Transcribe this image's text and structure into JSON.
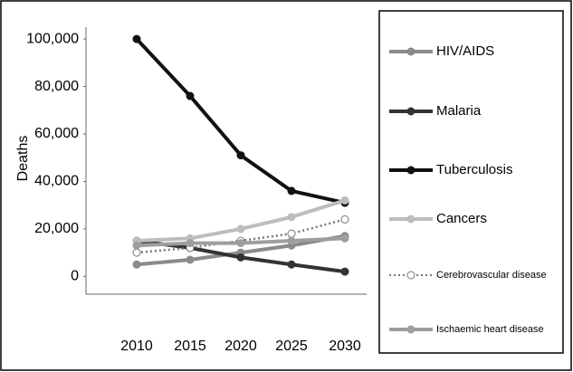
{
  "chart_data": {
    "type": "line",
    "y_label": "Deaths",
    "categories": [
      "2010",
      "2015",
      "2020",
      "2025",
      "2030"
    ],
    "ylim": [
      -7500,
      105000
    ],
    "yticks": [
      0,
      {
        "value": 20000,
        "label": "20,000"
      },
      {
        "value": 40000,
        "label": "40,000"
      },
      {
        "value": 60000,
        "label": "60,000"
      },
      {
        "value": 80000,
        "label": "80,000"
      },
      {
        "value": 100000,
        "label": "100,000"
      }
    ],
    "legend": "right",
    "series": [
      {
        "name": "HIV/AIDS",
        "color": "#8a8a8a",
        "style": "solid",
        "values": [
          5000,
          7000,
          10000,
          13000,
          17000
        ]
      },
      {
        "name": "Malaria",
        "color": "#333333",
        "style": "solid",
        "values": [
          15000,
          12000,
          8000,
          5000,
          2000
        ]
      },
      {
        "name": "Tuberculosis",
        "color": "#111111",
        "style": "solid",
        "values": [
          100000,
          76000,
          51000,
          36000,
          31000
        ]
      },
      {
        "name": "Cancers",
        "color": "#bdbdbd",
        "style": "solid",
        "values": [
          15000,
          16000,
          20000,
          25000,
          32000
        ]
      },
      {
        "name": "Cerebrovascular disease",
        "color": "#777777",
        "style": "dotted",
        "values": [
          10000,
          12000,
          15000,
          18000,
          24000
        ]
      },
      {
        "name": "Ischaemic heart disease",
        "color": "#9e9e9e",
        "style": "solid",
        "values": [
          13000,
          14000,
          14000,
          15000,
          16000
        ]
      }
    ]
  }
}
